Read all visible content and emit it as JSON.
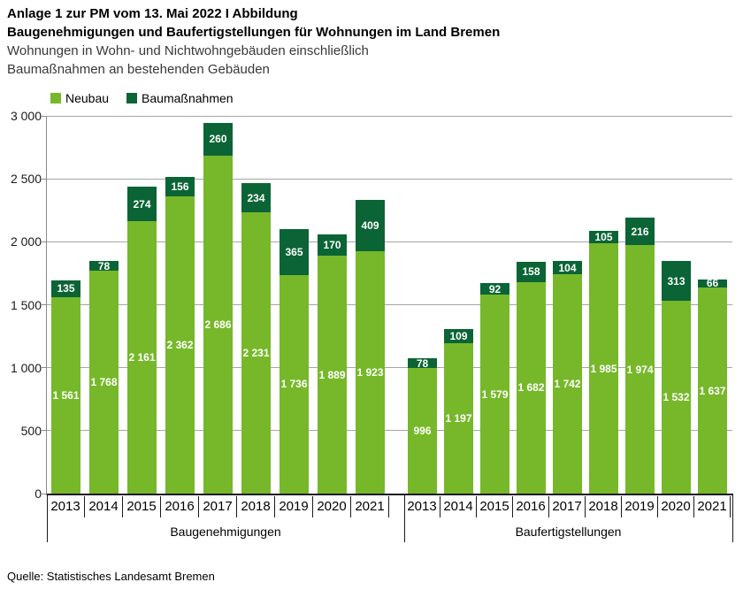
{
  "header": {
    "line1": "Anlage 1 zur PM vom 13. Mai 2022 I Abbildung",
    "line2": "Baugenehmigungen und Baufertigstellungen für Wohnungen im Land Bremen",
    "line3": "Wohnungen in Wohn- und Nichtwohngebäuden einschließlich",
    "line4": "Baumaßnahmen an bestehenden Gebäuden"
  },
  "legend": {
    "items": [
      {
        "label": "Neubau",
        "color": "#76b82a"
      },
      {
        "label": "Baumaßnahmen",
        "color": "#0b6435"
      }
    ]
  },
  "source": "Quelle: Statistisches Landesamt Bremen",
  "colors": {
    "neubau": "#76b82a",
    "baumassnahmen": "#0b6435",
    "gridline": "#a6a6a6",
    "axis": "#1a1a1a",
    "bar_label": "#ffffff"
  },
  "chart_data": {
    "type": "bar",
    "stacked": true,
    "grid": true,
    "legend_position": "top-left",
    "ylim": [
      0,
      3000
    ],
    "yticks": [
      3000,
      2500,
      2000,
      1500,
      1000,
      500,
      0
    ],
    "categories": [
      "2013",
      "2014",
      "2015",
      "2016",
      "2017",
      "2018",
      "2019",
      "2020",
      "2021"
    ],
    "groups": [
      {
        "label": "Baugenehmigungen",
        "series": [
          {
            "name": "Neubau",
            "values": [
              1561,
              1768,
              2161,
              2362,
              2686,
              2231,
              1736,
              1889,
              1923
            ]
          },
          {
            "name": "Baumaßnahmen",
            "values": [
              135,
              78,
              274,
              156,
              260,
              234,
              365,
              170,
              409
            ]
          }
        ]
      },
      {
        "label": "Baufertigstellungen",
        "series": [
          {
            "name": "Neubau",
            "values": [
              996,
              1197,
              1579,
              1682,
              1742,
              1985,
              1974,
              1532,
              1637
            ]
          },
          {
            "name": "Baumaßnahmen",
            "values": [
              78,
              109,
              92,
              158,
              104,
              105,
              216,
              313,
              66
            ]
          }
        ]
      }
    ]
  }
}
